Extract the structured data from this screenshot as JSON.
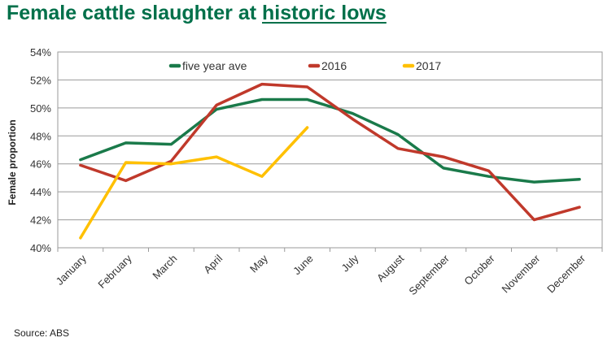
{
  "header": {
    "title_start": "Female cattle slaughter at ",
    "title_highlight": "historic lows"
  },
  "footer": {
    "source": "Source:  ABS"
  },
  "chart_data": {
    "type": "line",
    "title": "Female cattle slaughter at historic lows",
    "xlabel": "",
    "ylabel": "Female proportion",
    "ylim": [
      40,
      54
    ],
    "yticks": [
      40,
      42,
      44,
      46,
      48,
      50,
      52,
      54
    ],
    "ytick_format": "%",
    "grid": true,
    "legend_position": "top",
    "categories": [
      "January",
      "February",
      "March",
      "April",
      "May",
      "June",
      "July",
      "August",
      "September",
      "October",
      "November",
      "December"
    ],
    "series": [
      {
        "name": "five year ave",
        "color": "#1A7A4A",
        "values": [
          46.3,
          47.5,
          47.4,
          49.9,
          50.6,
          50.6,
          49.6,
          48.1,
          45.7,
          45.1,
          44.7,
          44.9
        ]
      },
      {
        "name": "2016",
        "color": "#C0392B",
        "values": [
          45.9,
          44.8,
          46.2,
          50.2,
          51.7,
          51.5,
          49.2,
          47.1,
          46.5,
          45.5,
          42.0,
          42.9
        ]
      },
      {
        "name": "2017",
        "color": "#FFC000",
        "values": [
          40.7,
          46.1,
          46.0,
          46.5,
          45.1,
          48.6,
          null,
          null,
          null,
          null,
          null,
          null
        ]
      }
    ]
  }
}
